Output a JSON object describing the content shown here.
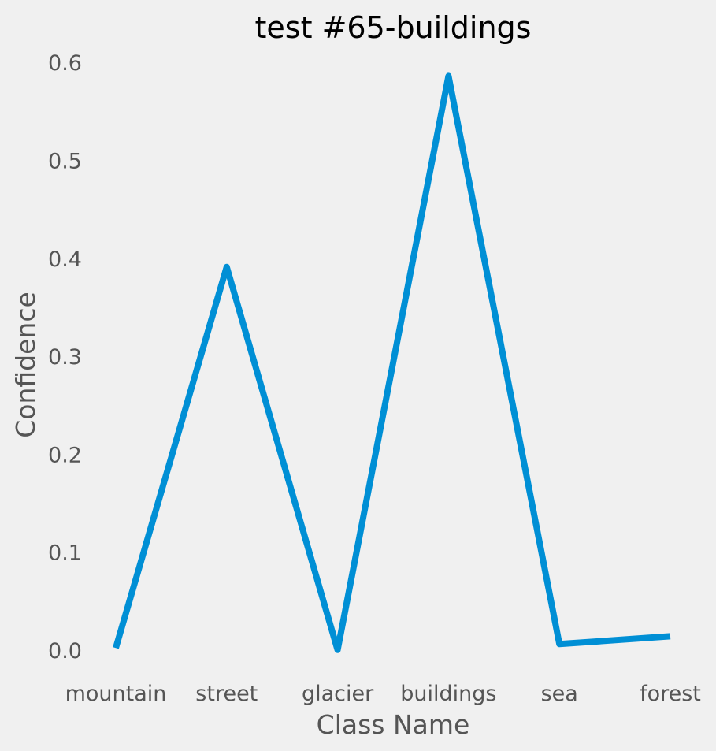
{
  "chart_data": {
    "type": "line",
    "title": "test #65-buildings",
    "xlabel": "Class Name",
    "ylabel": "Confidence",
    "categories": [
      "mountain",
      "street",
      "glacier",
      "buildings",
      "sea",
      "forest"
    ],
    "series": [
      {
        "values": [
          0.003,
          0.392,
          0.001,
          0.587,
          0.007,
          0.015
        ],
        "color": "#008fd5"
      }
    ],
    "ylim": [
      -0.025,
      0.62
    ],
    "yticks": [
      "0.0",
      "0.1",
      "0.2",
      "0.3",
      "0.4",
      "0.5",
      "0.6"
    ],
    "grid": false,
    "legend": "none"
  }
}
